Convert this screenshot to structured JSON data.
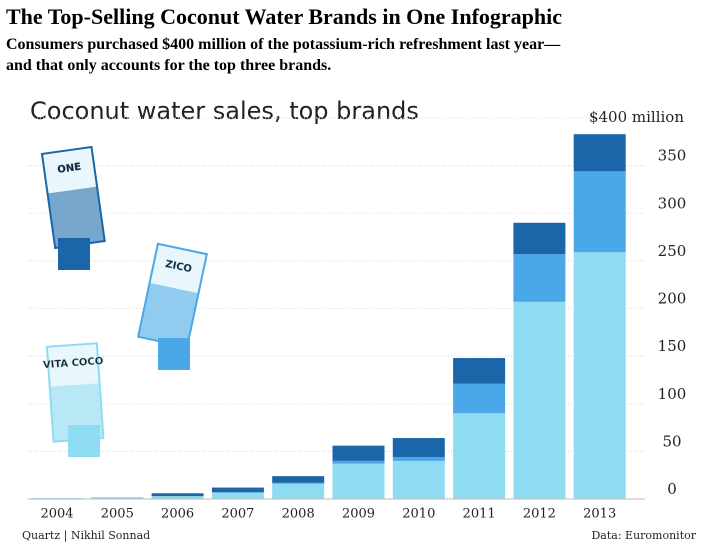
{
  "header": {
    "title": "The Top-Selling Coconut Water Brands in One Infographic",
    "subtitle": [
      "Consumers purchased $400 million of the potassium-rich refreshment last year—",
      "and that only accounts for the top three brands."
    ]
  },
  "chart_data": {
    "type": "stacked-bar",
    "title": "Coconut water sales, top brands",
    "categories": [
      "2004",
      "2005",
      "2006",
      "2007",
      "2008",
      "2009",
      "2010",
      "2011",
      "2012",
      "2013"
    ],
    "series": [
      {
        "name": "VITA COCO",
        "color": "#8fdcf2",
        "values": [
          1,
          2,
          3,
          7,
          16,
          37,
          40,
          90,
          207,
          259
        ]
      },
      {
        "name": "ZICO",
        "color": "#4aa8e8",
        "values": [
          0,
          0,
          0,
          0,
          1,
          3,
          4,
          31,
          50,
          85
        ]
      },
      {
        "name": "ONE",
        "color": "#1b66a8",
        "values": [
          0,
          0,
          3,
          5,
          7,
          16,
          20,
          27,
          33,
          39
        ]
      }
    ],
    "ylim": [
      0,
      400
    ],
    "yticks": [
      0,
      50,
      100,
      150,
      200,
      250,
      300,
      350,
      {
        "value": 400,
        "label": "$400 million"
      }
    ],
    "grid": true,
    "source_left": "Quartz | Nikhil Sonnad",
    "source_right": "Data: Euromonitor"
  }
}
